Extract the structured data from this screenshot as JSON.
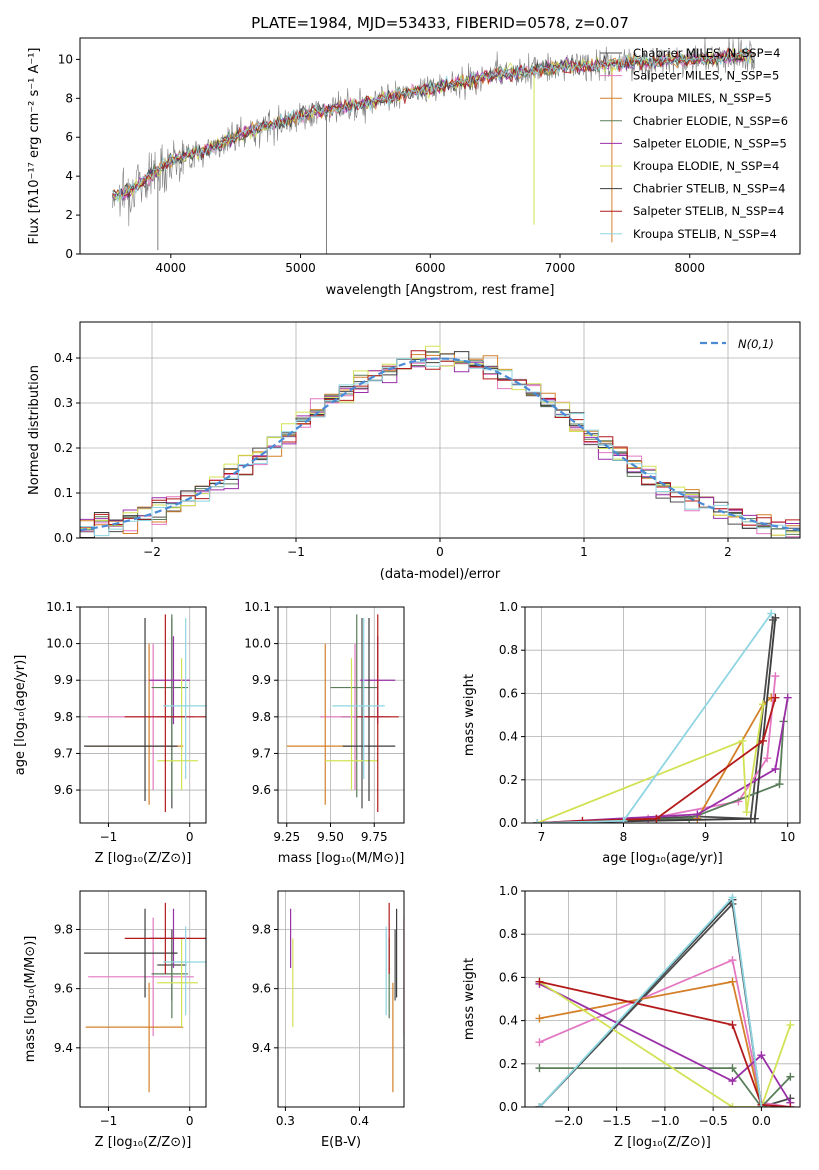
{
  "chart_data": [
    {
      "type": "line",
      "title": "PLATE=1984, MJD=53433, FIBERID=0578, z=0.07",
      "xlabel": "wavelength [Angstrom, rest frame]",
      "ylabel": "Flux [fλ10⁻¹⁷ erg cm⁻² s⁻¹ A⁻¹]",
      "xlim": [
        3300,
        8850
      ],
      "ylim": [
        0,
        11.1
      ],
      "xticks": [
        "4000",
        "5000",
        "6000",
        "7000",
        "8000"
      ],
      "yticks": [
        "0",
        "2",
        "4",
        "6",
        "8",
        "10"
      ],
      "legend_position": "upper right",
      "legend": [
        "Chabrier MILES, N_SSP=4",
        "Salpeter MILES, N_SSP=5",
        "Kroupa MILES, N_SSP=5",
        "Chabrier ELODIE, N_SSP=6",
        "Salpeter ELODIE, N_SSP=5",
        "Kroupa ELODIE, N_SSP=4",
        "Chabrier STELIB, N_SSP=4",
        "Salpeter STELIB, N_SSP=4",
        "Kroupa STELIB, N_SSP=4"
      ],
      "data_trend": {
        "x": [
          3550,
          3700,
          4000,
          4300,
          4600,
          5000,
          5500,
          6000,
          6500,
          7000,
          7500,
          8000,
          8500
        ],
        "y": [
          3.0,
          3.3,
          4.8,
          5.4,
          6.3,
          7.1,
          7.8,
          8.5,
          9.2,
          9.6,
          9.8,
          10.0,
          10.2
        ]
      }
    },
    {
      "type": "step",
      "xlabel": "(data-model)/error",
      "ylabel": "Normed distribution",
      "xlim": [
        -2.5,
        2.5
      ],
      "ylim": [
        0,
        0.48
      ],
      "xticks": [
        "−2",
        "−1",
        "0",
        "1",
        "2"
      ],
      "yticks": [
        "0.0",
        "0.1",
        "0.2",
        "0.3",
        "0.4"
      ],
      "legend": [
        "N(0,1)"
      ],
      "legend_position": "upper right",
      "grid": true
    },
    {
      "type": "errorbar",
      "xlabel": "Z [log₁₀(Z/Z⊙)]",
      "ylabel": "age  [log₁₀(age/yr)]",
      "xlim": [
        -1.35,
        0.2
      ],
      "ylim": [
        9.51,
        10.1
      ],
      "xticks": [
        "−1",
        "0"
      ],
      "yticks": [
        "9.6",
        "9.7",
        "9.8",
        "9.9",
        "10.0",
        "10.1"
      ],
      "grid": true
    },
    {
      "type": "errorbar",
      "xlabel": "mass [log₁₀(M/M⊙)]",
      "xlim": [
        9.2,
        9.92
      ],
      "ylim": [
        9.51,
        10.1
      ],
      "xticks": [
        "9.25",
        "9.50",
        "9.75"
      ],
      "yticks": [
        "9.6",
        "9.7",
        "9.8",
        "9.9",
        "10.0",
        "10.1"
      ],
      "grid": true
    },
    {
      "type": "line",
      "xlabel": "age  [log₁₀(age/yr)]",
      "ylabel": "mass weight",
      "xlim": [
        6.8,
        10.15
      ],
      "ylim": [
        0,
        1.0
      ],
      "xticks": [
        "7",
        "8",
        "9",
        "10"
      ],
      "yticks": [
        "0.0",
        "0.2",
        "0.4",
        "0.6",
        "0.8",
        "1.0"
      ],
      "grid": true
    },
    {
      "type": "errorbar",
      "xlabel": "Z [log₁₀(Z/Z⊙)]",
      "ylabel": "mass [log₁₀(M/M⊙)]",
      "xlim": [
        -1.35,
        0.2
      ],
      "ylim": [
        9.2,
        9.93
      ],
      "xticks": [
        "−1",
        "0"
      ],
      "yticks": [
        "9.4",
        "9.6",
        "9.8"
      ],
      "grid": true
    },
    {
      "type": "errorbar",
      "xlabel": "E(B-V)",
      "xlim": [
        0.29,
        0.46
      ],
      "ylim": [
        9.2,
        9.93
      ],
      "xticks": [
        "0.3",
        "0.4"
      ],
      "yticks": [
        "9.4",
        "9.6",
        "9.8"
      ],
      "grid": true
    },
    {
      "type": "line",
      "xlabel": "Z [log₁₀(Z/Z⊙)]",
      "ylabel": "mass weight",
      "xlim": [
        -2.45,
        0.4
      ],
      "ylim": [
        0,
        1.0
      ],
      "xticks": [
        "−2.0",
        "−1.5",
        "−1.0",
        "−0.5",
        "0.0"
      ],
      "yticks": [
        "0.0",
        "0.2",
        "0.4",
        "0.6",
        "0.8",
        "1.0"
      ],
      "grid": true
    }
  ],
  "models": [
    {
      "name": "Chabrier MILES",
      "nssp": "4",
      "color": "#4c4c4c",
      "age": 9.8,
      "ageErr": [
        0.25,
        0.27
      ],
      "Z": -0.22,
      "ZErr": [
        0.18,
        0.18
      ],
      "mass": 9.68,
      "massErr": [
        0.12,
        0.12
      ],
      "ebv": 0.448,
      "ageW": [
        [
          6.95,
          0.0
        ],
        [
          8.9,
          0.03
        ],
        [
          9.55,
          0.02
        ],
        [
          9.82,
          0.94
        ]
      ],
      "ZW": [
        [
          -2.3,
          0.0
        ],
        [
          -0.3,
          0.94
        ],
        [
          0.0,
          0.0
        ],
        [
          0.3,
          0.04
        ]
      ]
    },
    {
      "name": "Salpeter MILES",
      "nssp": "5",
      "color": "#e377c2",
      "age": 9.8,
      "ageErr": [
        0.2,
        0.2
      ],
      "Z": -0.45,
      "ZErr": [
        0.8,
        0.5
      ],
      "mass": 9.64,
      "massErr": [
        0.2,
        0.2
      ],
      "ebv": 0.46,
      "ageW": [
        [
          6.95,
          0.0
        ],
        [
          8.3,
          0.02
        ],
        [
          9.4,
          0.1
        ],
        [
          9.75,
          0.3
        ],
        [
          9.85,
          0.68
        ]
      ],
      "ZW": [
        [
          -2.3,
          0.3
        ],
        [
          -0.3,
          0.68
        ],
        [
          0.0,
          0.02
        ],
        [
          0.3,
          0.0
        ]
      ]
    },
    {
      "name": "Kroupa MILES",
      "nssp": "5",
      "color": "#d4802a",
      "age": 9.72,
      "ageErr": [
        0.16,
        0.28
      ],
      "Z": -0.5,
      "ZErr": [
        0.78,
        0.42
      ],
      "mass": 9.47,
      "massErr": [
        0.22,
        0.15
      ],
      "ebv": 0.445,
      "ageW": [
        [
          6.95,
          0.0
        ],
        [
          8.9,
          0.02
        ],
        [
          9.7,
          0.55
        ],
        [
          9.8,
          0.58
        ]
      ],
      "ZW": [
        [
          -2.3,
          0.41
        ],
        [
          -0.3,
          0.58
        ],
        [
          0.0,
          0.0
        ]
      ]
    },
    {
      "name": "Chabrier ELODIE",
      "nssp": "6",
      "color": "#5a7d5a",
      "age": 9.88,
      "ageErr": [
        0.3,
        0.2
      ],
      "Z": -0.22,
      "ZErr": [
        0.25,
        0.2
      ],
      "mass": 9.65,
      "massErr": [
        0.15,
        0.12
      ],
      "ebv": 0.44,
      "ageW": [
        [
          6.95,
          0.0
        ],
        [
          8.8,
          0.02
        ],
        [
          9.9,
          0.18
        ],
        [
          9.95,
          0.47
        ]
      ],
      "ZW": [
        [
          -2.3,
          0.18
        ],
        [
          -0.3,
          0.18
        ],
        [
          0.0,
          0.0
        ],
        [
          0.3,
          0.14
        ]
      ]
    },
    {
      "name": "Salpeter ELODIE",
      "nssp": "5",
      "color": "#9a2fa8",
      "age": 9.9,
      "ageErr": [
        0.12,
        0.12
      ],
      "Z": -0.2,
      "ZErr": [
        0.3,
        0.2
      ],
      "mass": 9.77,
      "massErr": [
        0.1,
        0.1
      ],
      "ebv": 0.307,
      "ageW": [
        [
          6.95,
          0.0
        ],
        [
          8.9,
          0.04
        ],
        [
          9.85,
          0.25
        ],
        [
          10.0,
          0.58
        ]
      ],
      "ZW": [
        [
          -2.3,
          0.57
        ],
        [
          -0.3,
          0.12
        ],
        [
          0.0,
          0.24
        ],
        [
          0.3,
          0.02
        ]
      ]
    },
    {
      "name": "Kroupa ELODIE",
      "nssp": "4",
      "color": "#d2e255",
      "age": 9.68,
      "ageErr": [
        0.08,
        0.28
      ],
      "Z": -0.1,
      "ZErr": [
        0.3,
        0.2
      ],
      "mass": 9.62,
      "massErr": [
        0.15,
        0.15
      ],
      "ebv": 0.31,
      "ageW": [
        [
          6.95,
          0.0
        ],
        [
          9.45,
          0.38
        ],
        [
          9.5,
          0.05
        ],
        [
          9.7,
          0.55
        ]
      ],
      "ZW": [
        [
          -2.3,
          0.58
        ],
        [
          -0.3,
          0.0
        ],
        [
          0.0,
          0.0
        ],
        [
          0.3,
          0.38
        ]
      ]
    },
    {
      "name": "Chabrier STELIB",
      "nssp": "4",
      "color": "#3d3d3d",
      "age": 9.72,
      "ageErr": [
        0.15,
        0.35
      ],
      "Z": -0.55,
      "ZErr": [
        0.75,
        0.4
      ],
      "mass": 9.72,
      "massErr": [
        0.15,
        0.15
      ],
      "ebv": 0.45,
      "ageW": [
        [
          6.95,
          0.0
        ],
        [
          9.6,
          0.02
        ],
        [
          9.85,
          0.95
        ]
      ],
      "ZW": [
        [
          -2.3,
          0.0
        ],
        [
          -0.3,
          0.96
        ],
        [
          0.0,
          0.0
        ]
      ]
    },
    {
      "name": "Salpeter STELIB",
      "nssp": "4",
      "color": "#b31a1a",
      "age": 9.8,
      "ageErr": [
        0.26,
        0.28
      ],
      "Z": -0.3,
      "ZErr": [
        0.5,
        0.5
      ],
      "mass": 9.77,
      "massErr": [
        0.12,
        0.12
      ],
      "ebv": 0.44,
      "ageW": [
        [
          6.95,
          0.0
        ],
        [
          7.5,
          0.01
        ],
        [
          8.4,
          0.02
        ],
        [
          9.7,
          0.38
        ],
        [
          9.85,
          0.58
        ]
      ],
      "ZW": [
        [
          -2.3,
          0.58
        ],
        [
          -0.3,
          0.38
        ],
        [
          0.0,
          0.01
        ],
        [
          0.3,
          0.0
        ]
      ]
    },
    {
      "name": "Kroupa STELIB",
      "nssp": "4",
      "color": "#8fd6e2",
      "age": 9.83,
      "ageErr": [
        0.2,
        0.24
      ],
      "Z": -0.05,
      "ZErr": [
        0.28,
        0.25
      ],
      "mass": 9.69,
      "massErr": [
        0.18,
        0.12
      ],
      "ebv": 0.436,
      "ageW": [
        [
          6.95,
          0.0
        ],
        [
          8.0,
          0.01
        ],
        [
          9.8,
          0.97
        ]
      ],
      "ZW": [
        [
          -2.3,
          0.0
        ],
        [
          -0.3,
          0.97
        ],
        [
          0.0,
          0.0
        ]
      ]
    }
  ]
}
